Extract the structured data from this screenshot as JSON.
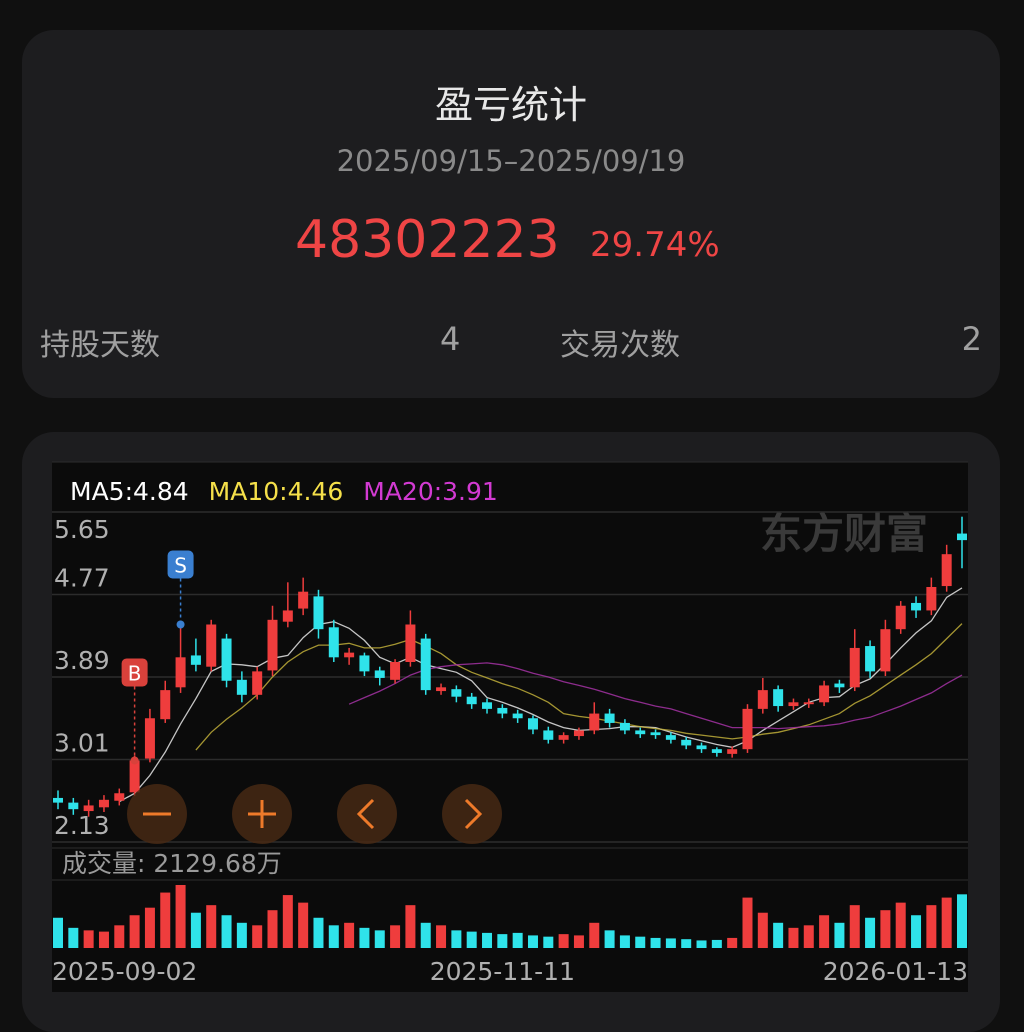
{
  "header": {
    "title": "盈亏统计",
    "period": "2025/09/15–2025/09/19",
    "profit": "48302223",
    "profit_pct": "29.74%"
  },
  "stats": [
    {
      "label": "持股天数",
      "value": "4"
    },
    {
      "label": "交易次数",
      "value": "2"
    }
  ],
  "chart_data": {
    "type": "candlestick",
    "watermark": "东方财富",
    "ma_labels": [
      {
        "text": "MA5:4.84",
        "color": "#ffffff"
      },
      {
        "text": "MA10:4.46",
        "color": "#f5e04a"
      },
      {
        "text": "MA20:3.91",
        "color": "#d23ad2"
      }
    ],
    "ylim": [
      2.13,
      5.65
    ],
    "yticks": [
      2.13,
      3.01,
      3.89,
      4.77,
      5.65
    ],
    "xticks": [
      {
        "value": 0,
        "label": "2025-09-02"
      },
      {
        "value": 29,
        "label": "2025-11-11"
      },
      {
        "value": 59,
        "label": "2026-01-13"
      }
    ],
    "up_color": "#ef3d3d",
    "down_color": "#2fe3ea",
    "open": [
      2.6,
      2.55,
      2.46,
      2.5,
      2.57,
      2.66,
      3.02,
      3.44,
      3.78,
      4.12,
      4.0,
      4.3,
      3.86,
      3.7,
      3.96,
      4.48,
      4.62,
      4.75,
      4.42,
      4.1,
      4.12,
      3.96,
      3.86,
      4.05,
      4.3,
      3.74,
      3.76,
      3.68,
      3.62,
      3.56,
      3.5,
      3.45,
      3.32,
      3.22,
      3.26,
      3.32,
      3.5,
      3.4,
      3.32,
      3.3,
      3.27,
      3.22,
      3.16,
      3.12,
      3.07,
      3.12,
      3.55,
      3.76,
      3.58,
      3.6,
      3.62,
      3.82,
      3.78,
      4.22,
      3.95,
      4.4,
      4.68,
      4.6,
      4.86,
      5.42
    ],
    "high": [
      2.68,
      2.6,
      2.58,
      2.63,
      2.7,
      3.05,
      3.55,
      3.85,
      4.45,
      4.3,
      4.5,
      4.35,
      3.95,
      4.0,
      4.65,
      4.9,
      4.95,
      4.82,
      4.5,
      4.2,
      4.15,
      4.0,
      4.08,
      4.6,
      4.35,
      3.82,
      3.8,
      3.72,
      3.66,
      3.6,
      3.54,
      3.48,
      3.36,
      3.3,
      3.35,
      3.62,
      3.55,
      3.44,
      3.35,
      3.33,
      3.3,
      3.25,
      3.19,
      3.14,
      3.15,
      3.6,
      3.88,
      3.8,
      3.66,
      3.66,
      3.85,
      3.86,
      4.4,
      4.28,
      4.5,
      4.7,
      4.75,
      4.95,
      5.3,
      5.6
    ],
    "low": [
      2.48,
      2.42,
      2.4,
      2.45,
      2.52,
      2.62,
      2.98,
      3.4,
      3.72,
      3.95,
      3.95,
      3.78,
      3.62,
      3.65,
      3.9,
      4.42,
      4.55,
      4.3,
      4.05,
      4.02,
      3.9,
      3.8,
      3.82,
      4.0,
      3.7,
      3.7,
      3.62,
      3.55,
      3.5,
      3.45,
      3.4,
      3.28,
      3.18,
      3.18,
      3.22,
      3.28,
      3.35,
      3.28,
      3.24,
      3.23,
      3.18,
      3.12,
      3.08,
      3.04,
      3.03,
      3.08,
      3.5,
      3.52,
      3.54,
      3.56,
      3.58,
      3.72,
      3.74,
      3.88,
      3.9,
      4.35,
      4.52,
      4.55,
      4.8,
      5.05
    ],
    "close": [
      2.55,
      2.48,
      2.52,
      2.58,
      2.65,
      3.0,
      3.45,
      3.75,
      4.1,
      4.02,
      4.45,
      3.85,
      3.7,
      3.95,
      4.5,
      4.6,
      4.8,
      4.4,
      4.1,
      4.15,
      3.95,
      3.88,
      4.05,
      4.45,
      3.75,
      3.78,
      3.68,
      3.6,
      3.55,
      3.5,
      3.45,
      3.33,
      3.22,
      3.27,
      3.32,
      3.5,
      3.4,
      3.32,
      3.28,
      3.27,
      3.22,
      3.16,
      3.12,
      3.08,
      3.12,
      3.55,
      3.75,
      3.58,
      3.62,
      3.62,
      3.8,
      3.78,
      4.2,
      3.95,
      4.4,
      4.65,
      4.6,
      4.85,
      5.2,
      5.35
    ],
    "ma": [
      {
        "color": "#e6e6e6",
        "values": [
          null,
          null,
          null,
          null,
          2.56,
          2.65,
          2.84,
          3.09,
          3.39,
          3.66,
          3.95,
          4.03,
          4.02,
          4.0,
          4.09,
          4.12,
          4.31,
          4.45,
          4.48,
          4.41,
          4.28,
          4.1,
          4.03,
          4.1,
          4.02,
          3.98,
          3.94,
          3.85,
          3.67,
          3.62,
          3.56,
          3.49,
          3.41,
          3.35,
          3.32,
          3.33,
          3.34,
          3.36,
          3.36,
          3.35,
          3.3,
          3.25,
          3.21,
          3.17,
          3.14,
          3.21,
          3.32,
          3.42,
          3.52,
          3.62,
          3.67,
          3.68,
          3.8,
          3.87,
          4.03,
          4.2,
          4.36,
          4.49,
          4.74,
          4.84
        ]
      },
      {
        "color": "#bfae3a",
        "values": [
          null,
          null,
          null,
          null,
          null,
          null,
          null,
          null,
          null,
          3.11,
          3.3,
          3.44,
          3.56,
          3.7,
          3.89,
          4.05,
          4.16,
          4.23,
          4.23,
          4.25,
          4.2,
          4.2,
          4.24,
          4.29,
          4.22,
          4.14,
          4.02,
          3.94,
          3.88,
          3.82,
          3.77,
          3.7,
          3.62,
          3.5,
          3.47,
          3.45,
          3.42,
          3.39,
          3.36,
          3.34,
          3.32,
          3.29,
          3.27,
          3.25,
          3.23,
          3.25,
          3.28,
          3.3,
          3.34,
          3.38,
          3.44,
          3.5,
          3.61,
          3.69,
          3.8,
          3.91,
          4.02,
          4.14,
          4.3,
          4.46
        ]
      },
      {
        "color": "#a532a5",
        "values": [
          null,
          null,
          null,
          null,
          null,
          null,
          null,
          null,
          null,
          null,
          null,
          null,
          null,
          null,
          null,
          null,
          null,
          null,
          null,
          3.6,
          3.67,
          3.74,
          3.82,
          3.91,
          3.97,
          4.0,
          4.02,
          4.03,
          4.04,
          4.02,
          3.98,
          3.93,
          3.89,
          3.84,
          3.8,
          3.76,
          3.71,
          3.66,
          3.62,
          3.58,
          3.55,
          3.5,
          3.45,
          3.4,
          3.35,
          3.35,
          3.35,
          3.34,
          3.35,
          3.36,
          3.37,
          3.39,
          3.43,
          3.46,
          3.52,
          3.58,
          3.65,
          3.72,
          3.82,
          3.91
        ]
      }
    ],
    "trades": [
      {
        "label": "B",
        "index": 5,
        "price": 3.0,
        "color": "#d9413b"
      },
      {
        "label": "S",
        "index": 8,
        "price": 4.45,
        "color": "#3a7fd0"
      }
    ],
    "volume_label": "成交量: 2129.68万",
    "volume_ylim": [
      0,
      2500
    ],
    "volume": [
      1200,
      800,
      700,
      650,
      900,
      1300,
      1600,
      2200,
      2500,
      1400,
      1700,
      1300,
      1000,
      900,
      1500,
      2100,
      1800,
      1200,
      900,
      1000,
      800,
      700,
      900,
      1700,
      1000,
      900,
      700,
      650,
      600,
      550,
      600,
      500,
      450,
      550,
      500,
      1000,
      700,
      500,
      450,
      400,
      380,
      350,
      300,
      320,
      400,
      2000,
      1400,
      1000,
      800,
      900,
      1300,
      1000,
      1700,
      1200,
      1500,
      1800,
      1300,
      1700,
      2000,
      2129.68
    ]
  }
}
